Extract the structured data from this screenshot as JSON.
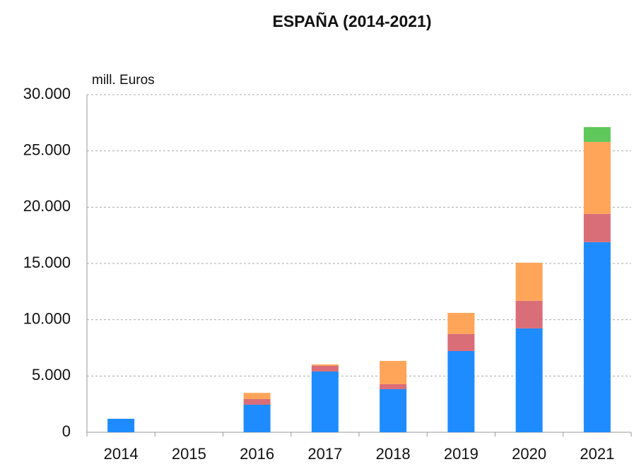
{
  "chart_data": {
    "type": "stacked_bar",
    "title": "ESPAÑA (2014-2021)",
    "y_label": "mill. Euros",
    "categories": [
      "2014",
      "2015",
      "2016",
      "2017",
      "2018",
      "2019",
      "2020",
      "2021"
    ],
    "series": [
      {
        "color": "#1e8cff",
        "values": [
          1200,
          0,
          2450,
          5400,
          3830,
          7220,
          9230,
          16890
        ]
      },
      {
        "color": "#d96d78",
        "values": [
          0,
          0,
          500,
          500,
          440,
          1510,
          2450,
          2510
        ]
      },
      {
        "color": "#ffa55a",
        "values": [
          0,
          0,
          550,
          130,
          2070,
          1880,
          3390,
          6400
        ]
      },
      {
        "color": "#5ec85a",
        "values": [
          0,
          0,
          0,
          0,
          0,
          0,
          0,
          1320
        ]
      }
    ],
    "ylim": [
      0,
      30000
    ],
    "yticks": [
      0,
      {
        "value": 5000,
        "label": "5.000"
      },
      {
        "value": 10000,
        "label": "10.000"
      },
      {
        "value": 15000,
        "label": "15.000"
      },
      {
        "value": 20000,
        "label": "20.000"
      },
      {
        "value": 25000,
        "label": "25.000"
      },
      {
        "value": 30000,
        "label": "30.000"
      }
    ],
    "grid": true
  }
}
